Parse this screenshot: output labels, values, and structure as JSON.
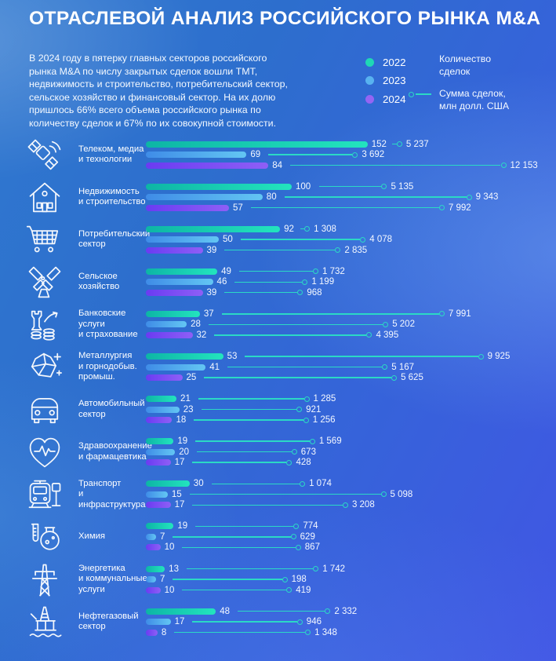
{
  "title": "ОТРАСЛЕВОЙ АНАЛИЗ РОССИЙСКОГО РЫНКА M&A",
  "intro": "В 2024 году в пятерку главных секторов российского рынка M&A по числу закрытых сделок вошли ТМТ, недвижимость и строительство, потребительский сектор, сельское хозяйство и финансовый сектор. На их долю пришлось 66% всего объема российского рынка по количеству сделок и 67% по их совокупной стоимости.",
  "legend": {
    "count_label": "Количество сделок",
    "sum_label": "Сумма сделок, млн долл. США"
  },
  "chart_data": {
    "type": "bar",
    "orientation": "horizontal",
    "grid": false,
    "legend_position": "top-right",
    "count_axis_label": "Количество сделок",
    "sum_axis_label": "Сумма сделок, млн долл. США",
    "series": [
      {
        "year": "2022",
        "dot_color": "#1fd7b5",
        "bar_from": "#0db5a5",
        "bar_to": "#23e4be"
      },
      {
        "year": "2023",
        "dot_color": "#58b2f0",
        "bar_from": "#3f8ce7",
        "bar_to": "#63c6f3"
      },
      {
        "year": "2024",
        "dot_color": "#9565f3",
        "bar_from": "#6a3bf2",
        "bar_to": "#8e5ff6"
      }
    ],
    "line_color": "#2bd9c5",
    "sectors": [
      {
        "icon": "satellite-icon",
        "label_lines": [
          "Телеком, медиа",
          "и технологии"
        ],
        "counts": [
          152,
          69,
          84
        ],
        "sums": [
          5237,
          3692,
          12153
        ],
        "sums_text": [
          "5 237",
          "3 692",
          "12 153"
        ]
      },
      {
        "icon": "house-icon",
        "label_lines": [
          "Недвижимость",
          "и строительство"
        ],
        "counts": [
          100,
          80,
          57
        ],
        "sums": [
          5135,
          9343,
          7992
        ],
        "sums_text": [
          "5 135",
          "9 343",
          "7 992"
        ]
      },
      {
        "icon": "cart-icon",
        "label_lines": [
          "Потребительский",
          "сектор"
        ],
        "counts": [
          92,
          50,
          39
        ],
        "sums": [
          1308,
          4078,
          2835
        ],
        "sums_text": [
          "1 308",
          "4 078",
          "2 835"
        ]
      },
      {
        "icon": "windmill-icon",
        "label_lines": [
          "Сельское",
          "хозяйство"
        ],
        "counts": [
          49,
          46,
          39
        ],
        "sums": [
          1732,
          1199,
          968
        ],
        "sums_text": [
          "1 732",
          "1 199",
          "968"
        ]
      },
      {
        "icon": "bank-icon",
        "label_lines": [
          "Банковские",
          "услуги",
          "и страхование"
        ],
        "counts": [
          37,
          28,
          32
        ],
        "sums": [
          7991,
          5202,
          4395
        ],
        "sums_text": [
          "7 991",
          "5 202",
          "4 395"
        ]
      },
      {
        "icon": "ore-icon",
        "label_lines": [
          "Металлургия",
          "и горнодобыв.",
          "промыш."
        ],
        "counts": [
          53,
          41,
          25
        ],
        "sums": [
          9925,
          5167,
          5625
        ],
        "sums_text": [
          "9 925",
          "5 167",
          "5 625"
        ]
      },
      {
        "icon": "car-icon",
        "label_lines": [
          "Автомобильный",
          "сектор"
        ],
        "counts": [
          21,
          23,
          18
        ],
        "sums": [
          1285,
          921,
          1256
        ],
        "sums_text": [
          "1 285",
          "921",
          "1 256"
        ]
      },
      {
        "icon": "health-icon",
        "label_lines": [
          "Здравоохранение",
          "и фармацевтика"
        ],
        "counts": [
          19,
          20,
          17
        ],
        "sums": [
          1569,
          673,
          428
        ],
        "sums_text": [
          "1 569",
          "673",
          "428"
        ]
      },
      {
        "icon": "tram-icon",
        "label_lines": [
          "Транспорт",
          "и инфраструктура"
        ],
        "counts": [
          30,
          15,
          17
        ],
        "sums": [
          1074,
          5098,
          3208
        ],
        "sums_text": [
          "1 074",
          "5 098",
          "3 208"
        ]
      },
      {
        "icon": "chemistry-icon",
        "label_lines": [
          "Химия"
        ],
        "counts": [
          19,
          7,
          10
        ],
        "sums": [
          774,
          629,
          867
        ],
        "sums_text": [
          "774",
          "629",
          "867"
        ]
      },
      {
        "icon": "energy-icon",
        "label_lines": [
          "Энергетика",
          "и коммунальные",
          "услуги"
        ],
        "counts": [
          13,
          7,
          10
        ],
        "sums": [
          1742,
          198,
          419
        ],
        "sums_text": [
          "1 742",
          "198",
          "419"
        ]
      },
      {
        "icon": "oil-rig-icon",
        "label_lines": [
          "Нефтегазовый",
          "сектор"
        ],
        "counts": [
          48,
          17,
          8
        ],
        "sums": [
          2332,
          946,
          1348
        ],
        "sums_text": [
          "2 332",
          "946",
          "1 348"
        ]
      }
    ]
  }
}
